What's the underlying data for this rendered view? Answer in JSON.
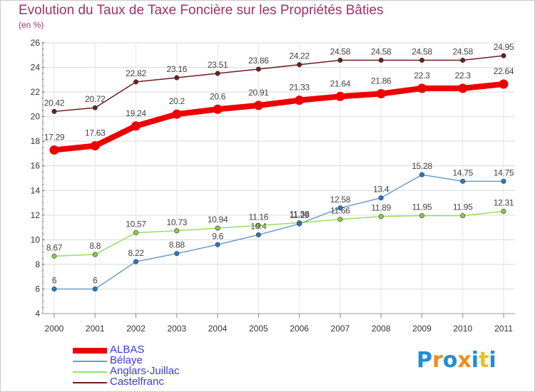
{
  "title": "Evolution du Taux de Taxe Foncière sur les Propriétés Bâties",
  "unit_label": "(en %)",
  "logo": {
    "text": "Proxiti",
    "colors": [
      "#1f8fd6",
      "#f28c1e",
      "#1f8fd6",
      "#f28c1e",
      "#1f8fd6",
      "#e8c01e",
      "#1f8fd6"
    ]
  },
  "chart_data": {
    "type": "line",
    "x": [
      "2000",
      "2001",
      "2002",
      "2003",
      "2004",
      "2005",
      "2006",
      "2007",
      "2008",
      "2009",
      "2010",
      "2011"
    ],
    "ylim": [
      4,
      26
    ],
    "yticks": [
      4,
      6,
      8,
      10,
      12,
      14,
      16,
      18,
      20,
      22,
      24,
      26
    ],
    "grid": true,
    "legend_position": "bottom-left",
    "series": [
      {
        "name": "Castelfranc",
        "color": "#6b1f1f",
        "marker": "#6b1f1f",
        "width": 1.5,
        "values": [
          20.42,
          20.72,
          22.82,
          23.16,
          23.51,
          23.86,
          24.22,
          24.58,
          24.58,
          24.58,
          24.58,
          24.95
        ],
        "labels": [
          "20.42",
          "20.72",
          "22.82",
          "23.16",
          "23.51",
          "23.86",
          "24.22",
          "24.58",
          "24.58",
          "24.58",
          "24.58",
          "24.95"
        ]
      },
      {
        "name": "ALBAS",
        "color": "#ee0000",
        "marker": "#ee0000",
        "width": 8,
        "values": [
          17.29,
          17.63,
          19.24,
          20.2,
          20.6,
          20.91,
          21.33,
          21.64,
          21.86,
          22.3,
          22.3,
          22.64
        ],
        "labels": [
          "17.29",
          "17.63",
          "19.24",
          "20.2",
          "20.6",
          "20.91",
          "21.33",
          "21.64",
          "21.86",
          "22.3",
          "22.3",
          "22.64"
        ]
      },
      {
        "name": "Anglars-Juillac",
        "color": "#99dd66",
        "marker": "#88cc44",
        "width": 1.5,
        "values": [
          8.67,
          8.8,
          10.57,
          10.73,
          10.94,
          11.16,
          11.38,
          11.66,
          11.89,
          11.95,
          11.95,
          12.31
        ],
        "labels": [
          "8.67",
          "8.8",
          "10.57",
          "10.73",
          "10.94",
          "11.16",
          "11.38",
          "11.66",
          "11.89",
          "11.95",
          "11.95",
          "12.31"
        ]
      },
      {
        "name": "Bélaye",
        "color": "#6a9ec8",
        "marker": "#2a78c0",
        "width": 1.5,
        "values": [
          6,
          6,
          8.22,
          8.88,
          9.6,
          10.4,
          11.29,
          12.58,
          13.4,
          15.28,
          14.75,
          14.75
        ],
        "labels": [
          "6",
          "6",
          "8.22",
          "8.88",
          "9.6",
          "10.4",
          "11.29",
          "12.58",
          "13.4",
          "15.28",
          "14.75",
          "14.75"
        ]
      }
    ],
    "legend": [
      {
        "name": "ALBAS",
        "color": "#ee0000",
        "thickness": 8
      },
      {
        "name": "Bélaye",
        "color": "#6a9ec8",
        "thickness": 2
      },
      {
        "name": "Anglars-Juillac",
        "color": "#99dd66",
        "thickness": 2
      },
      {
        "name": "Castelfranc",
        "color": "#6b1f1f",
        "thickness": 2
      }
    ]
  }
}
